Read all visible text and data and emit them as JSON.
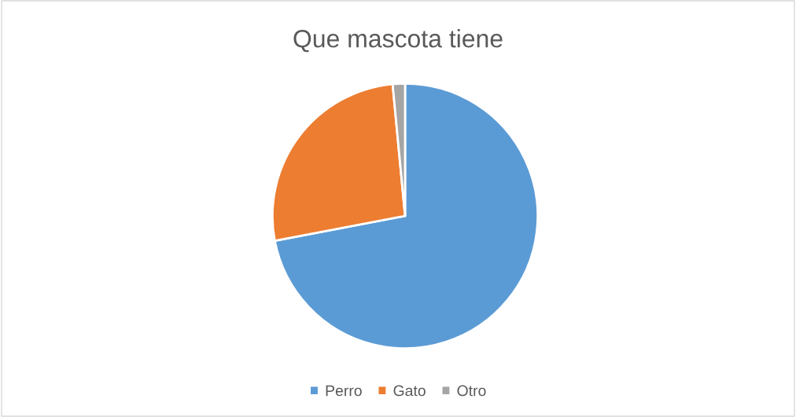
{
  "chart_data": {
    "type": "pie",
    "title": "Que mascota tiene",
    "categories": [
      "Perro",
      "Gato",
      "Otro"
    ],
    "values": [
      72,
      26.5,
      1.5
    ],
    "colors": [
      "#5b9bd5",
      "#ed7d31",
      "#a5a5a5"
    ],
    "legend": "bottom"
  }
}
